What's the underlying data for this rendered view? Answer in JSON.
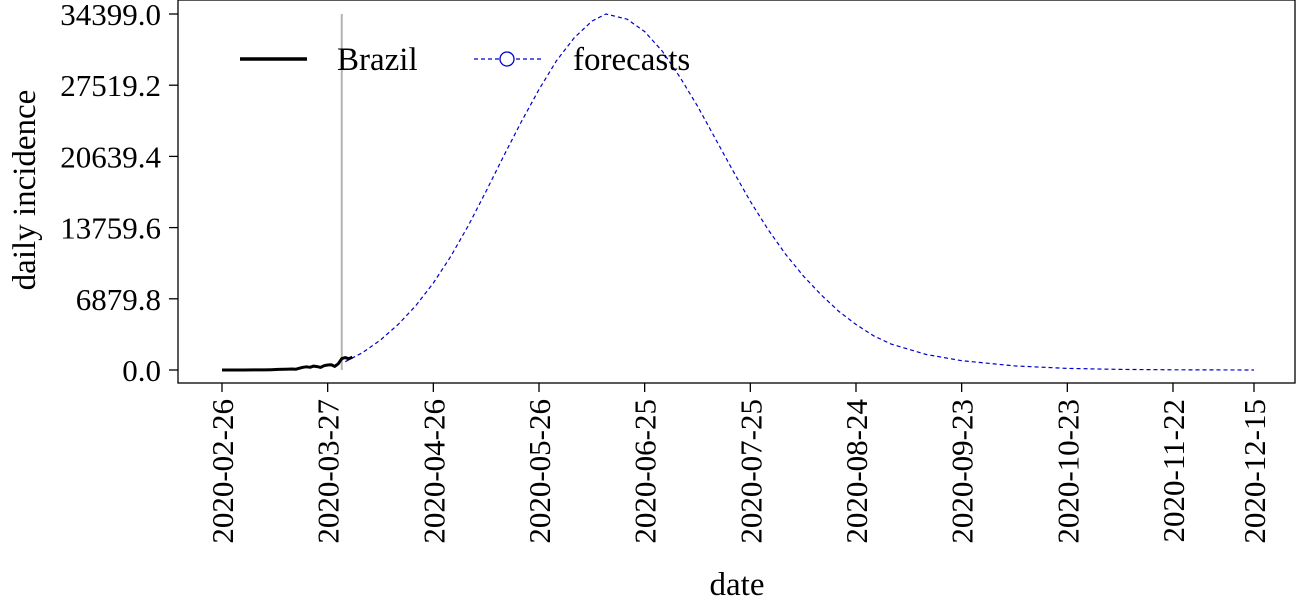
{
  "chart_data": {
    "type": "line",
    "xlabel": "date",
    "ylabel": "daily incidence",
    "ylim": [
      0.0,
      34399.0
    ],
    "xlim": [
      "2020-02-26",
      "2020-12-15"
    ],
    "yticks": [
      "0.0",
      "6879.8",
      "13759.6",
      "20639.4",
      "27519.2",
      "34399.0"
    ],
    "xticks": [
      "2020-02-26",
      "2020-03-27",
      "2020-04-26",
      "2020-05-26",
      "2020-06-25",
      "2020-07-25",
      "2020-08-24",
      "2020-09-23",
      "2020-10-23",
      "2020-11-22",
      "2020-12-15"
    ],
    "grid": false,
    "legend_position": "top-left",
    "vertical_marker": "2020-03-31",
    "series": [
      {
        "name": "Brazil",
        "style": "solid",
        "color": "#000000",
        "points": [
          [
            "2020-02-26",
            1
          ],
          [
            "2020-02-29",
            2
          ],
          [
            "2020-03-03",
            2
          ],
          [
            "2020-03-06",
            5
          ],
          [
            "2020-03-09",
            5
          ],
          [
            "2020-03-11",
            30
          ],
          [
            "2020-03-13",
            60
          ],
          [
            "2020-03-15",
            80
          ],
          [
            "2020-03-17",
            100
          ],
          [
            "2020-03-18",
            80
          ],
          [
            "2020-03-19",
            170
          ],
          [
            "2020-03-20",
            260
          ],
          [
            "2020-03-21",
            310
          ],
          [
            "2020-03-22",
            260
          ],
          [
            "2020-03-23",
            380
          ],
          [
            "2020-03-24",
            330
          ],
          [
            "2020-03-25",
            250
          ],
          [
            "2020-03-26",
            420
          ],
          [
            "2020-03-27",
            480
          ],
          [
            "2020-03-28",
            500
          ],
          [
            "2020-03-29",
            350
          ],
          [
            "2020-03-30",
            600
          ],
          [
            "2020-03-31",
            1100
          ],
          [
            "2020-04-01",
            1200
          ],
          [
            "2020-04-02",
            1080
          ],
          [
            "2020-04-03",
            1250
          ]
        ]
      },
      {
        "name": "forecasts",
        "style": "dashed",
        "color": "#0000cc",
        "points": [
          [
            "2020-04-01",
            800
          ],
          [
            "2020-04-06",
            1700
          ],
          [
            "2020-04-11",
            2900
          ],
          [
            "2020-04-16",
            4400
          ],
          [
            "2020-04-21",
            6200
          ],
          [
            "2020-04-26",
            8400
          ],
          [
            "2020-05-01",
            11000
          ],
          [
            "2020-05-06",
            14000
          ],
          [
            "2020-05-11",
            17300
          ],
          [
            "2020-05-16",
            20700
          ],
          [
            "2020-05-21",
            24000
          ],
          [
            "2020-05-26",
            27100
          ],
          [
            "2020-05-31",
            29900
          ],
          [
            "2020-06-05",
            32100
          ],
          [
            "2020-06-10",
            33700
          ],
          [
            "2020-06-14",
            34399
          ],
          [
            "2020-06-20",
            33900
          ],
          [
            "2020-06-25",
            32700
          ],
          [
            "2020-06-30",
            30800
          ],
          [
            "2020-07-05",
            28300
          ],
          [
            "2020-07-10",
            25500
          ],
          [
            "2020-07-15",
            22400
          ],
          [
            "2020-07-20",
            19300
          ],
          [
            "2020-07-25",
            16300
          ],
          [
            "2020-07-30",
            13600
          ],
          [
            "2020-08-04",
            11200
          ],
          [
            "2020-08-09",
            9100
          ],
          [
            "2020-08-14",
            7300
          ],
          [
            "2020-08-19",
            5700
          ],
          [
            "2020-08-24",
            4400
          ],
          [
            "2020-08-29",
            3300
          ],
          [
            "2020-09-03",
            2500
          ],
          [
            "2020-09-13",
            1500
          ],
          [
            "2020-09-23",
            900
          ],
          [
            "2020-10-08",
            400
          ],
          [
            "2020-10-23",
            150
          ],
          [
            "2020-11-07",
            60
          ],
          [
            "2020-11-22",
            20
          ],
          [
            "2020-12-15",
            2
          ]
        ]
      }
    ]
  }
}
